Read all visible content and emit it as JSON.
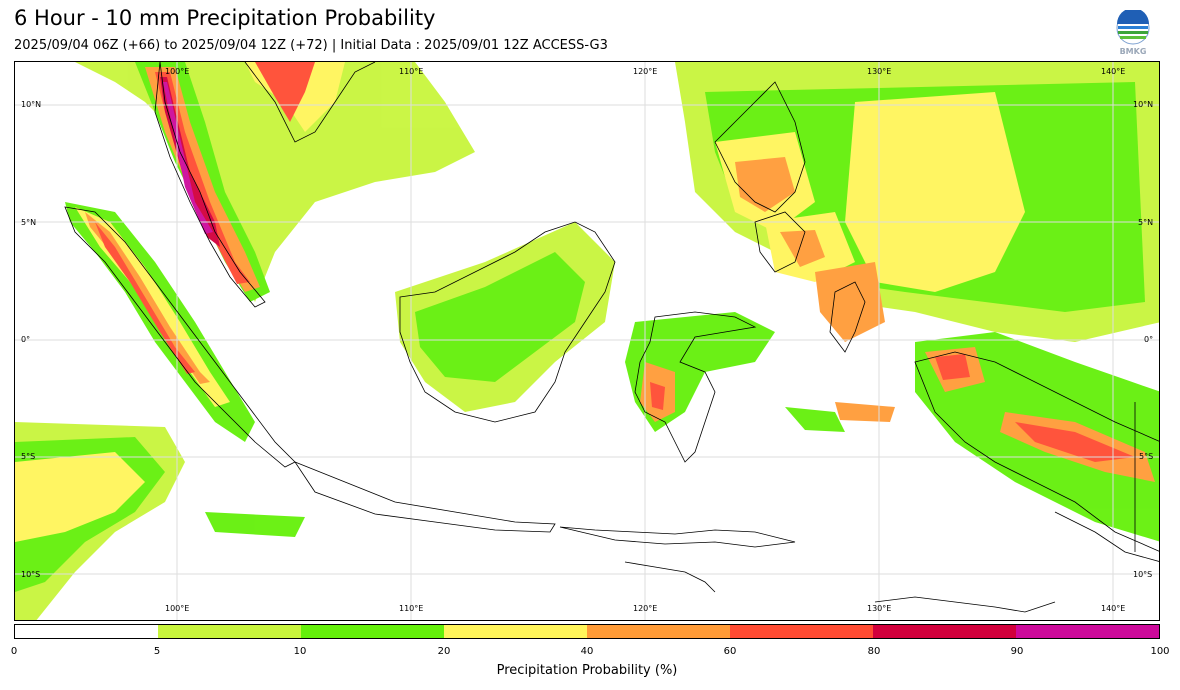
{
  "header": {
    "title": "6 Hour - 10 mm Precipitation Probability",
    "subtitle": "2025/09/04 06Z (+66) to 2025/09/04 12Z (+72) | Initial Data : 2025/09/01 12Z ACCESS-G3",
    "logo_text": "BMKG"
  },
  "map": {
    "extent": {
      "lon": [
        93,
        142
      ],
      "lat": [
        -12,
        12
      ]
    },
    "lon_ticks": [
      "100°E",
      "110°E",
      "120°E",
      "130°E",
      "140°E"
    ],
    "lat_ticks": [
      "10°N",
      "5°N",
      "0°",
      "5°S",
      "10°S"
    ],
    "gridlines": true
  },
  "colorbar": {
    "title": "Precipitation Probability (%)",
    "levels": [
      "0",
      "5",
      "10",
      "20",
      "40",
      "60",
      "80",
      "90",
      "100"
    ],
    "colors": [
      "#ffffff",
      "#c8f53c",
      "#64f00a",
      "#fff55a",
      "#ff9b37",
      "#ff4b32",
      "#d2003c",
      "#cd0a9b"
    ]
  }
}
